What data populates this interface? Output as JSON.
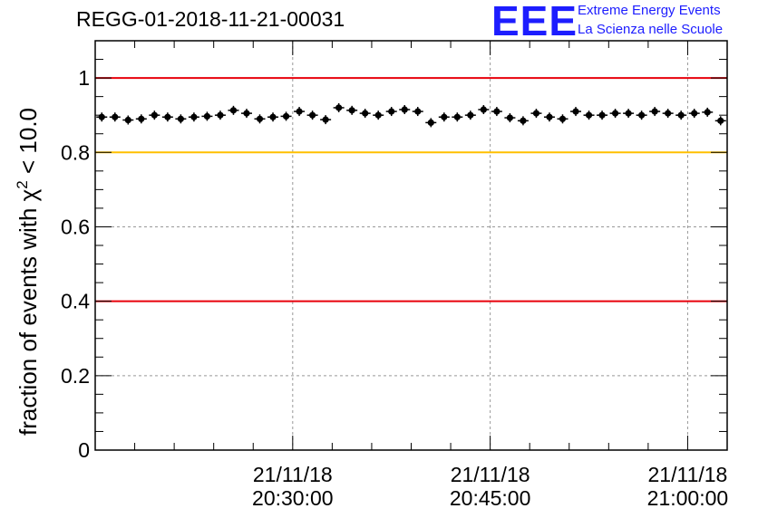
{
  "header": {
    "title": "REGG-01-2018-11-21-00031",
    "logo_text": "EEE",
    "logo_line1": "Extreme Energy Events",
    "logo_line2": "La Scienza nelle Scuole"
  },
  "chart_data": {
    "type": "scatter",
    "title": "REGG-01-2018-11-21-00031",
    "ylabel_main": "fraction of events with χ",
    "ylabel_sup": "2",
    "ylabel_tail": " < 10.0",
    "ylim": [
      0,
      1.1
    ],
    "yticks": [
      0,
      0.2,
      0.4,
      0.6,
      0.8,
      1
    ],
    "ytick_labels": [
      "0",
      "0.2",
      "0.4",
      "0.6",
      "0.8",
      "1"
    ],
    "xlim": [
      0,
      48
    ],
    "xticks": [
      {
        "pos": 15,
        "date": "21/11/18",
        "time": "20:30:00"
      },
      {
        "pos": 30,
        "date": "21/11/18",
        "time": "20:45:00"
      },
      {
        "pos": 45,
        "date": "21/11/18",
        "time": "21:00:00"
      }
    ],
    "grid": true,
    "reference_lines": [
      {
        "y": 1.0,
        "color": "#e8000b"
      },
      {
        "y": 0.8,
        "color": "#ffc000"
      },
      {
        "y": 0.4,
        "color": "#e8000b"
      }
    ],
    "series": [
      {
        "x": [
          0.5,
          1.5,
          2.5,
          3.5,
          4.5,
          5.5,
          6.5,
          7.5,
          8.5,
          9.5,
          10.5,
          11.5,
          12.5,
          13.5,
          14.5,
          15.5,
          16.5,
          17.5,
          18.5,
          19.5,
          20.5,
          21.5,
          22.5,
          23.5,
          24.5,
          25.5,
          26.5,
          27.5,
          28.5,
          29.5,
          30.5,
          31.5,
          32.5,
          33.5,
          34.5,
          35.5,
          36.5,
          37.5,
          38.5,
          39.5,
          40.5,
          41.5,
          42.5,
          43.5,
          44.5,
          45.5,
          46.5,
          47.5
        ],
        "values": [
          0.895,
          0.895,
          0.887,
          0.89,
          0.9,
          0.895,
          0.89,
          0.895,
          0.897,
          0.9,
          0.913,
          0.905,
          0.89,
          0.895,
          0.897,
          0.91,
          0.9,
          0.888,
          0.92,
          0.913,
          0.905,
          0.9,
          0.91,
          0.915,
          0.91,
          0.88,
          0.895,
          0.895,
          0.9,
          0.915,
          0.91,
          0.893,
          0.885,
          0.905,
          0.895,
          0.89,
          0.91,
          0.9,
          0.9,
          0.905,
          0.905,
          0.9,
          0.91,
          0.905,
          0.9,
          0.905,
          0.908,
          0.885
        ],
        "color": "#000000"
      }
    ]
  }
}
